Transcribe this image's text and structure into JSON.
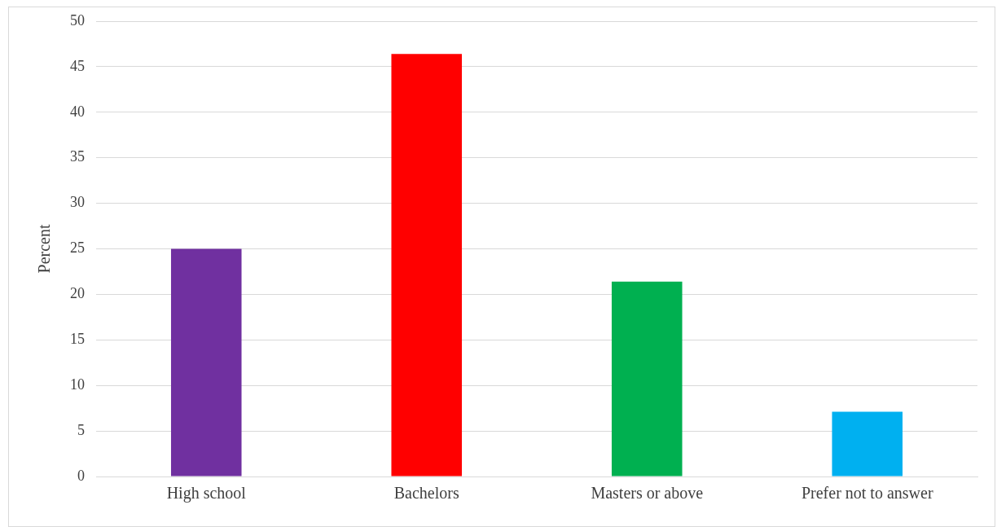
{
  "chart_data": {
    "type": "bar",
    "ylabel": "Percent",
    "categories": [
      "High school",
      "Bachelors",
      "Masters or above",
      "Prefer not to answer"
    ],
    "values": [
      25.0,
      46.4,
      21.4,
      7.1
    ],
    "colors": [
      "#7030a0",
      "#ff0000",
      "#00b050",
      "#00b0f0"
    ],
    "ylim": [
      0,
      50
    ],
    "yticks": [
      0,
      5,
      10,
      15,
      20,
      25,
      30,
      35,
      40,
      45,
      50
    ],
    "grid": "y",
    "legend": false
  }
}
